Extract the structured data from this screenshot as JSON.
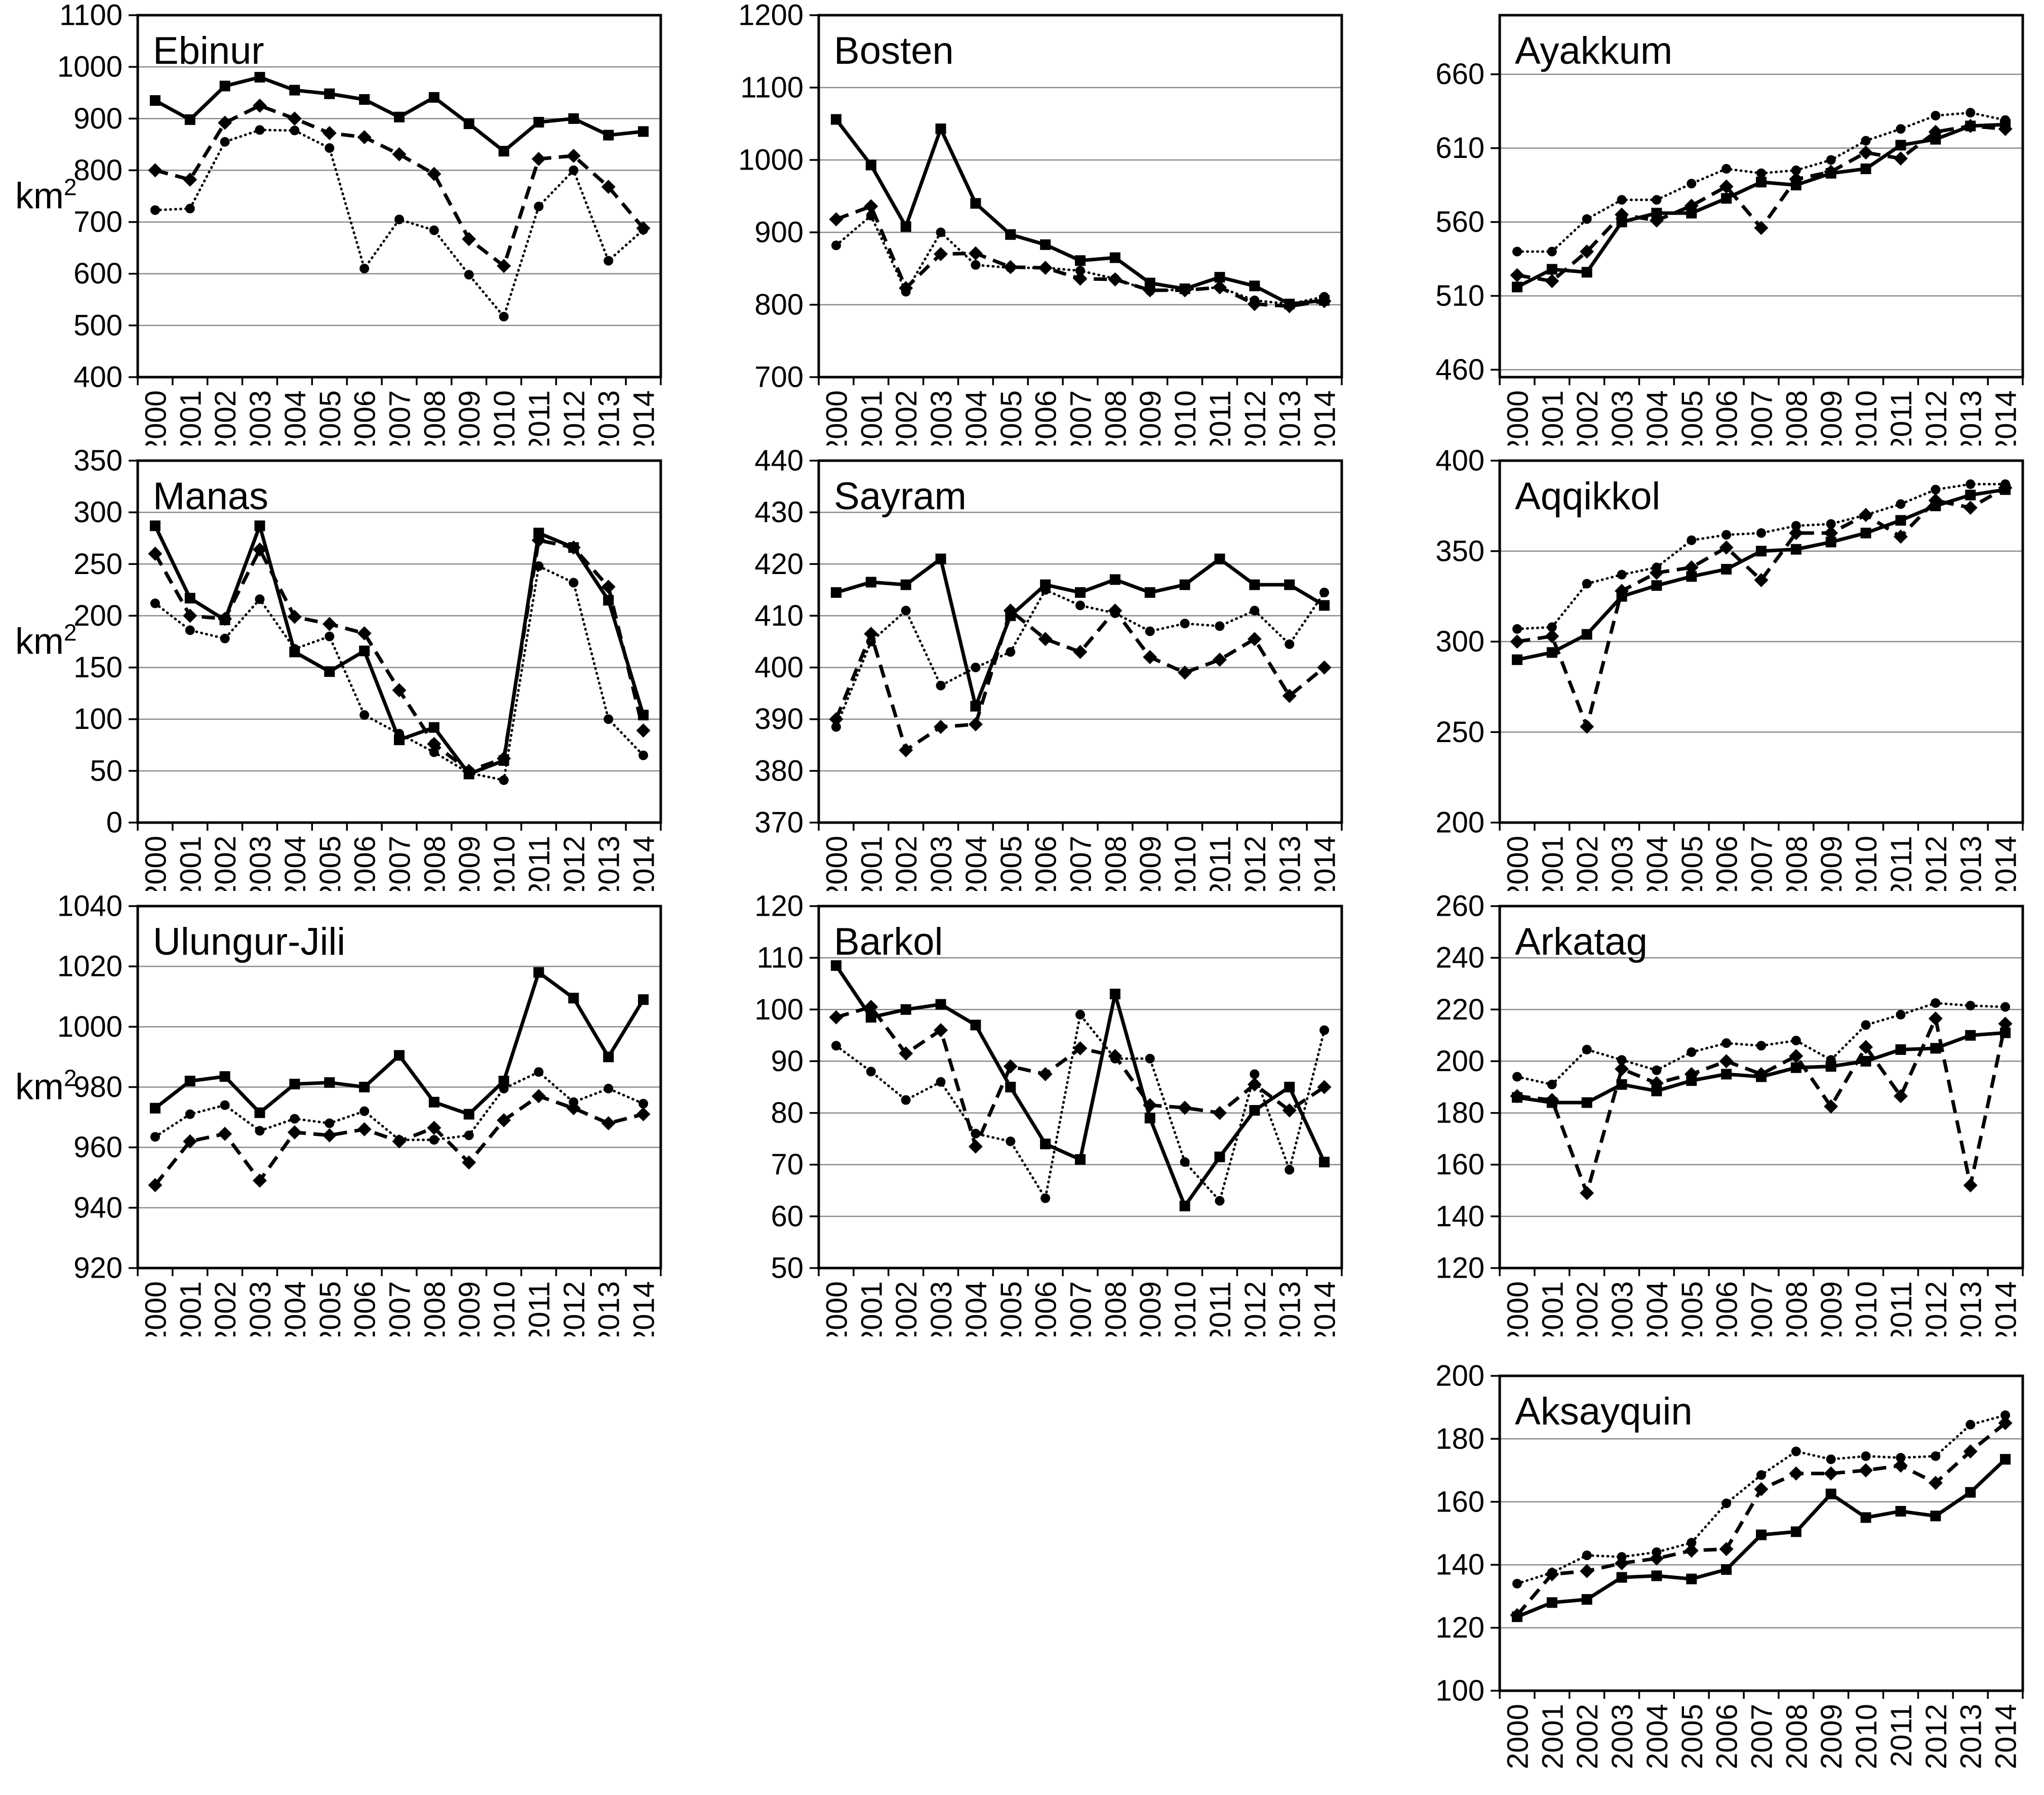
{
  "figure": {
    "unit_base": "km",
    "unit_exp": "2",
    "background": "#ffffff",
    "line_color": "#000000",
    "grid_color": "#8c8c8c",
    "years": [
      "2000",
      "2001",
      "2002",
      "2003",
      "2004",
      "2005",
      "2006",
      "2007",
      "2008",
      "2009",
      "2010",
      "2011",
      "2012",
      "2013",
      "2014"
    ]
  },
  "chart_data": [
    {
      "type": "line",
      "title": "Ebinur",
      "row": 0,
      "col": 0,
      "show_unit": true,
      "xlabel": "",
      "ylabel": "km2",
      "ylim": [
        400,
        1100
      ],
      "yticks": [
        400,
        500,
        600,
        700,
        800,
        900,
        1000,
        1100
      ],
      "grid": true,
      "legend": "none",
      "series": [
        {
          "name": "solid-square",
          "line": "solid",
          "marker": "square",
          "values": [
            935,
            898,
            963,
            980,
            955,
            948,
            937,
            903,
            941,
            890,
            837,
            893,
            900,
            868,
            875
          ]
        },
        {
          "name": "dashed-diamond",
          "line": "dashed",
          "marker": "diamond",
          "values": [
            800,
            782,
            892,
            925,
            900,
            872,
            864,
            831,
            793,
            667,
            615,
            822,
            828,
            768,
            688
          ]
        },
        {
          "name": "dotted-circle",
          "line": "dotted",
          "marker": "circle",
          "values": [
            723,
            726,
            855,
            878,
            877,
            843,
            610,
            705,
            684,
            598,
            517,
            730,
            800,
            625,
            685
          ]
        }
      ]
    },
    {
      "type": "line",
      "title": "Bosten",
      "row": 0,
      "col": 1,
      "show_unit": false,
      "xlabel": "",
      "ylabel": "",
      "ylim": [
        700,
        1200
      ],
      "yticks": [
        700,
        800,
        900,
        1000,
        1100,
        1200
      ],
      "grid": true,
      "legend": "none",
      "series": [
        {
          "name": "solid-square",
          "line": "solid",
          "marker": "square",
          "values": [
            1056,
            993,
            908,
            1043,
            940,
            897,
            883,
            861,
            865,
            830,
            822,
            838,
            826,
            801,
            806
          ]
        },
        {
          "name": "dashed-diamond",
          "line": "dashed",
          "marker": "diamond",
          "values": [
            918,
            936,
            823,
            870,
            871,
            852,
            851,
            836,
            835,
            820,
            820,
            824,
            801,
            798,
            805
          ]
        },
        {
          "name": "dotted-circle",
          "line": "dotted",
          "marker": "circle",
          "values": [
            882,
            923,
            818,
            900,
            855,
            851,
            851,
            847,
            836,
            819,
            821,
            824,
            806,
            801,
            811
          ]
        }
      ]
    },
    {
      "type": "line",
      "title": "Ayakkum",
      "row": 0,
      "col": 2,
      "show_unit": false,
      "xlabel": "",
      "ylabel": "",
      "ylim": [
        455,
        700
      ],
      "yticks": [
        460,
        510,
        560,
        610,
        660
      ],
      "grid": true,
      "legend": "none",
      "series": [
        {
          "name": "solid-square",
          "line": "solid",
          "marker": "square",
          "values": [
            516,
            528,
            526,
            560,
            566,
            566,
            576,
            587,
            585,
            593,
            596,
            612,
            616,
            625,
            626
          ]
        },
        {
          "name": "dashed-diamond",
          "line": "dashed",
          "marker": "diamond",
          "values": [
            524,
            520,
            540,
            565,
            561,
            571,
            584,
            556,
            589,
            594,
            607,
            603,
            621,
            625,
            623
          ]
        },
        {
          "name": "dotted-circle",
          "line": "dotted",
          "marker": "circle",
          "values": [
            540,
            540,
            562,
            575,
            575,
            586,
            596,
            593,
            595,
            602,
            615,
            623,
            632,
            634,
            629
          ]
        }
      ]
    },
    {
      "type": "line",
      "title": "Manas",
      "row": 1,
      "col": 0,
      "show_unit": true,
      "xlabel": "",
      "ylabel": "km2",
      "ylim": [
        0,
        350
      ],
      "yticks": [
        0,
        50,
        100,
        150,
        200,
        250,
        300,
        350
      ],
      "grid": true,
      "legend": "none",
      "series": [
        {
          "name": "solid-square",
          "line": "solid",
          "marker": "square",
          "values": [
            287,
            217,
            196,
            287,
            165,
            146,
            166,
            80,
            92,
            47,
            60,
            280,
            266,
            215,
            104
          ]
        },
        {
          "name": "dashed-diamond",
          "line": "dashed",
          "marker": "diamond",
          "values": [
            260,
            200,
            197,
            264,
            199,
            192,
            183,
            128,
            76,
            50,
            62,
            273,
            266,
            228,
            89
          ]
        },
        {
          "name": "dotted-circle",
          "line": "dotted",
          "marker": "circle",
          "values": [
            212,
            186,
            178,
            216,
            168,
            180,
            104,
            86,
            68,
            48,
            41,
            248,
            232,
            100,
            65
          ]
        }
      ]
    },
    {
      "type": "line",
      "title": "Sayram",
      "row": 1,
      "col": 1,
      "show_unit": false,
      "xlabel": "",
      "ylabel": "",
      "ylim": [
        370,
        440
      ],
      "yticks": [
        370,
        380,
        390,
        400,
        410,
        420,
        430,
        440
      ],
      "grid": true,
      "legend": "none",
      "series": [
        {
          "name": "solid-square",
          "line": "solid",
          "marker": "square",
          "values": [
            414.5,
            416.5,
            416,
            421,
            392.5,
            410,
            416,
            414.5,
            417,
            414.5,
            416,
            421,
            416,
            416,
            412
          ]
        },
        {
          "name": "dashed-diamond",
          "line": "dashed",
          "marker": "diamond",
          "values": [
            390,
            406.5,
            384,
            388.5,
            389,
            411,
            405.5,
            403,
            411,
            402,
            399,
            401.5,
            405.5,
            394.5,
            400
          ]
        },
        {
          "name": "dotted-circle",
          "line": "dotted",
          "marker": "circle",
          "values": [
            388.5,
            405,
            411,
            396.5,
            400,
            403,
            415,
            412,
            410.5,
            407,
            408.5,
            408,
            411,
            404.5,
            414.5
          ]
        }
      ]
    },
    {
      "type": "line",
      "title": "Aqqikkol",
      "row": 1,
      "col": 2,
      "show_unit": false,
      "xlabel": "",
      "ylabel": "",
      "ylim": [
        200,
        400
      ],
      "yticks": [
        200,
        250,
        300,
        350,
        400
      ],
      "grid": true,
      "legend": "none",
      "series": [
        {
          "name": "solid-square",
          "line": "solid",
          "marker": "square",
          "values": [
            290,
            294,
            304,
            325,
            331,
            336,
            340,
            350,
            351,
            355,
            360,
            367,
            375,
            381,
            384
          ]
        },
        {
          "name": "dashed-diamond",
          "line": "dashed",
          "marker": "diamond",
          "values": [
            300,
            303,
            253,
            328,
            338,
            341,
            352,
            334,
            360,
            360,
            370,
            358,
            378,
            374,
            385
          ]
        },
        {
          "name": "dotted-circle",
          "line": "dotted",
          "marker": "circle",
          "values": [
            307,
            308,
            332,
            337,
            341,
            356,
            359,
            360,
            364,
            365,
            370,
            376,
            384,
            387,
            387
          ]
        }
      ]
    },
    {
      "type": "line",
      "title": "Ulungur-Jili",
      "row": 2,
      "col": 0,
      "show_unit": true,
      "xlabel": "",
      "ylabel": "km2",
      "ylim": [
        920,
        1040
      ],
      "yticks": [
        920,
        940,
        960,
        980,
        1000,
        1020,
        1040
      ],
      "grid": true,
      "legend": "none",
      "series": [
        {
          "name": "solid-square",
          "line": "solid",
          "marker": "square",
          "values": [
            973,
            982,
            983.5,
            971.5,
            981,
            981.5,
            980,
            990.5,
            975,
            971,
            982,
            1018,
            1009.5,
            990,
            1009
          ]
        },
        {
          "name": "dashed-diamond",
          "line": "dashed",
          "marker": "diamond",
          "values": [
            947.5,
            962,
            964.5,
            949,
            965,
            964,
            966,
            962,
            966.5,
            955,
            969,
            977,
            973,
            968,
            971
          ]
        },
        {
          "name": "dotted-circle",
          "line": "dotted",
          "marker": "circle",
          "values": [
            963.5,
            971,
            974,
            965.5,
            969.5,
            968,
            972,
            962.5,
            962.5,
            964,
            979.5,
            985,
            975,
            979.5,
            974.5
          ]
        }
      ]
    },
    {
      "type": "line",
      "title": "Barkol",
      "row": 2,
      "col": 1,
      "show_unit": false,
      "xlabel": "",
      "ylabel": "",
      "ylim": [
        50,
        120
      ],
      "yticks": [
        50,
        60,
        70,
        80,
        90,
        100,
        110,
        120
      ],
      "grid": true,
      "legend": "none",
      "series": [
        {
          "name": "solid-square",
          "line": "solid",
          "marker": "square",
          "values": [
            108.5,
            98.5,
            100,
            101,
            97,
            85,
            74,
            71,
            103,
            79,
            62,
            71.5,
            80.5,
            85,
            70.5
          ]
        },
        {
          "name": "dashed-diamond",
          "line": "dashed",
          "marker": "diamond",
          "values": [
            98.5,
            100.5,
            91.5,
            96,
            73.5,
            89,
            87.5,
            92.5,
            91,
            81.5,
            81,
            80,
            85.5,
            80.5,
            85
          ]
        },
        {
          "name": "dotted-circle",
          "line": "dotted",
          "marker": "circle",
          "values": [
            93,
            88,
            82.5,
            86,
            76,
            74.5,
            63.5,
            99,
            90.5,
            90.5,
            70.5,
            63,
            87.5,
            69,
            96
          ]
        }
      ]
    },
    {
      "type": "line",
      "title": "Arkatag",
      "row": 2,
      "col": 2,
      "show_unit": false,
      "xlabel": "",
      "ylabel": "",
      "ylim": [
        120,
        260
      ],
      "yticks": [
        120,
        140,
        160,
        180,
        200,
        220,
        240,
        260
      ],
      "grid": true,
      "legend": "none",
      "series": [
        {
          "name": "solid-square",
          "line": "solid",
          "marker": "square",
          "values": [
            186,
            184,
            184,
            191,
            188.5,
            192.5,
            195,
            194,
            197.5,
            198,
            200,
            204.5,
            205,
            210,
            211
          ]
        },
        {
          "name": "dashed-diamond",
          "line": "dashed",
          "marker": "diamond",
          "values": [
            186.5,
            185,
            149,
            197,
            191.5,
            195,
            200,
            195,
            202,
            182.5,
            205.5,
            186.5,
            216.5,
            152,
            214.5
          ]
        },
        {
          "name": "dotted-circle",
          "line": "dotted",
          "marker": "circle",
          "values": [
            194,
            191,
            204.5,
            200.5,
            196.5,
            203.5,
            207,
            206,
            208,
            200.5,
            214,
            218,
            222.5,
            221.5,
            221
          ]
        }
      ]
    },
    {
      "type": "line",
      "title": "Aksayquin",
      "row": 3,
      "col": 2,
      "show_unit": false,
      "xlabel": "",
      "ylabel": "",
      "ylim": [
        100,
        200
      ],
      "yticks": [
        100,
        120,
        140,
        160,
        180,
        200
      ],
      "grid": true,
      "legend": "none",
      "series": [
        {
          "name": "solid-square",
          "line": "solid",
          "marker": "square",
          "values": [
            123.5,
            128,
            129,
            136,
            136.5,
            135.5,
            138.5,
            149.5,
            150.5,
            162.5,
            155,
            157,
            155.5,
            163,
            173.5
          ]
        },
        {
          "name": "dashed-diamond",
          "line": "dashed",
          "marker": "diamond",
          "values": [
            124,
            137,
            138,
            140.5,
            142,
            144.5,
            145,
            164,
            169,
            169,
            170,
            171.5,
            166,
            176,
            185
          ]
        },
        {
          "name": "dotted-circle",
          "line": "dotted",
          "marker": "circle",
          "values": [
            134,
            137.5,
            143,
            142.5,
            144,
            147,
            159.5,
            168.5,
            176,
            173.5,
            174.5,
            174,
            174.5,
            184.5,
            187.5
          ]
        }
      ]
    }
  ]
}
